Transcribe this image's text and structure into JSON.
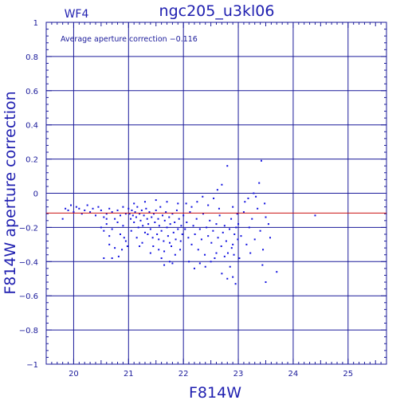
{
  "chart_data": {
    "type": "scatter",
    "title": "ngc205_u3kl06",
    "chip_label": "WF4",
    "annotation": "Average aperture correction  −0.116",
    "xlabel": "F814W",
    "ylabel": "F814W aperture correction",
    "xlim": [
      19.5,
      25.7
    ],
    "ylim": [
      -1,
      1
    ],
    "x_ticks": [
      "20",
      "21",
      "22",
      "23",
      "24",
      "25"
    ],
    "x_tick_values": [
      20,
      21,
      22,
      23,
      24,
      25
    ],
    "y_ticks": [
      "1",
      "0.8",
      "0.6",
      "0.4",
      "0.2",
      "0",
      "−0.2",
      "−0.4",
      "−0.6",
      "−0.8",
      "−1"
    ],
    "y_tick_values": [
      1,
      0.8,
      0.6,
      0.4,
      0.2,
      0,
      -0.2,
      -0.4,
      -0.6,
      -0.8,
      -1
    ],
    "average_correction": -0.116,
    "grid": true,
    "colors": {
      "frame": "#1a1a9a",
      "points": "#1010e0",
      "average_line": "#c81010",
      "text": "#1f1fb0"
    },
    "points": [
      [
        19.8,
        -0.15
      ],
      [
        19.85,
        -0.09
      ],
      [
        19.9,
        -0.1
      ],
      [
        19.95,
        -0.07
      ],
      [
        20.0,
        -0.11
      ],
      [
        20.05,
        -0.08
      ],
      [
        20.1,
        -0.09
      ],
      [
        20.15,
        -0.12
      ],
      [
        20.2,
        -0.1
      ],
      [
        20.25,
        -0.07
      ],
      [
        20.3,
        -0.11
      ],
      [
        20.35,
        -0.09
      ],
      [
        20.4,
        -0.13
      ],
      [
        20.45,
        -0.08
      ],
      [
        20.5,
        -0.1
      ],
      [
        20.55,
        -0.14
      ],
      [
        20.6,
        -0.12
      ],
      [
        20.65,
        -0.09
      ],
      [
        20.7,
        -0.11
      ],
      [
        20.75,
        -0.15
      ],
      [
        20.8,
        -0.1
      ],
      [
        20.85,
        -0.13
      ],
      [
        20.9,
        -0.08
      ],
      [
        20.95,
        -0.12
      ],
      [
        20.5,
        -0.2
      ],
      [
        20.55,
        -0.22
      ],
      [
        20.6,
        -0.18
      ],
      [
        20.65,
        -0.25
      ],
      [
        20.7,
        -0.21
      ],
      [
        20.8,
        -0.17
      ],
      [
        20.85,
        -0.24
      ],
      [
        20.9,
        -0.19
      ],
      [
        20.95,
        -0.28
      ],
      [
        20.75,
        -0.32
      ],
      [
        20.65,
        -0.3
      ],
      [
        20.55,
        -0.38
      ],
      [
        20.7,
        -0.38
      ],
      [
        20.82,
        -0.37
      ],
      [
        20.88,
        -0.33
      ],
      [
        20.6,
        -0.15
      ],
      [
        20.92,
        -0.26
      ],
      [
        20.98,
        -0.31
      ],
      [
        21.0,
        -0.09
      ],
      [
        21.02,
        -0.12
      ],
      [
        21.04,
        -0.15
      ],
      [
        21.06,
        -0.1
      ],
      [
        21.08,
        -0.13
      ],
      [
        21.1,
        -0.17
      ],
      [
        21.12,
        -0.11
      ],
      [
        21.14,
        -0.14
      ],
      [
        21.16,
        -0.08
      ],
      [
        21.18,
        -0.2
      ],
      [
        21.2,
        -0.12
      ],
      [
        21.22,
        -0.16
      ],
      [
        21.24,
        -0.1
      ],
      [
        21.26,
        -0.19
      ],
      [
        21.28,
        -0.13
      ],
      [
        21.3,
        -0.23
      ],
      [
        21.32,
        -0.09
      ],
      [
        21.34,
        -0.15
      ],
      [
        21.36,
        -0.18
      ],
      [
        21.38,
        -0.11
      ],
      [
        21.4,
        -0.21
      ],
      [
        21.42,
        -0.14
      ],
      [
        21.44,
        -0.26
      ],
      [
        21.46,
        -0.12
      ],
      [
        21.48,
        -0.17
      ],
      [
        21.5,
        -0.1
      ],
      [
        21.52,
        -0.24
      ],
      [
        21.54,
        -0.15
      ],
      [
        21.56,
        -0.19
      ],
      [
        21.58,
        -0.08
      ],
      [
        21.6,
        -0.22
      ],
      [
        21.62,
        -0.13
      ],
      [
        21.64,
        -0.28
      ],
      [
        21.66,
        -0.16
      ],
      [
        21.68,
        -0.11
      ],
      [
        21.7,
        -0.2
      ],
      [
        21.72,
        -0.25
      ],
      [
        21.74,
        -0.14
      ],
      [
        21.76,
        -0.18
      ],
      [
        21.78,
        -0.31
      ],
      [
        21.8,
        -0.12
      ],
      [
        21.82,
        -0.23
      ],
      [
        21.84,
        -0.17
      ],
      [
        21.86,
        -0.27
      ],
      [
        21.88,
        -0.1
      ],
      [
        21.9,
        -0.21
      ],
      [
        21.92,
        -0.15
      ],
      [
        21.94,
        -0.33
      ],
      [
        21.96,
        -0.19
      ],
      [
        21.98,
        -0.24
      ],
      [
        21.05,
        -0.22
      ],
      [
        21.15,
        -0.26
      ],
      [
        21.25,
        -0.29
      ],
      [
        21.35,
        -0.24
      ],
      [
        21.45,
        -0.31
      ],
      [
        21.55,
        -0.27
      ],
      [
        21.65,
        -0.34
      ],
      [
        21.75,
        -0.29
      ],
      [
        21.85,
        -0.36
      ],
      [
        21.95,
        -0.28
      ],
      [
        21.1,
        -0.06
      ],
      [
        21.3,
        -0.05
      ],
      [
        21.5,
        -0.04
      ],
      [
        21.7,
        -0.05
      ],
      [
        21.9,
        -0.06
      ],
      [
        21.2,
        -0.31
      ],
      [
        21.4,
        -0.35
      ],
      [
        21.6,
        -0.38
      ],
      [
        21.8,
        -0.41
      ],
      [
        21.65,
        -0.42
      ],
      [
        21.75,
        -0.4
      ],
      [
        21.55,
        -0.33
      ],
      [
        22.0,
        -0.13
      ],
      [
        22.03,
        -0.21
      ],
      [
        22.06,
        -0.17
      ],
      [
        22.09,
        -0.26
      ],
      [
        22.12,
        -0.11
      ],
      [
        22.15,
        -0.3
      ],
      [
        22.18,
        -0.19
      ],
      [
        22.21,
        -0.24
      ],
      [
        22.24,
        -0.15
      ],
      [
        22.27,
        -0.33
      ],
      [
        22.3,
        -0.21
      ],
      [
        22.33,
        -0.27
      ],
      [
        22.36,
        -0.12
      ],
      [
        22.39,
        -0.36
      ],
      [
        22.42,
        -0.2
      ],
      [
        22.45,
        -0.25
      ],
      [
        22.48,
        -0.16
      ],
      [
        22.51,
        -0.29
      ],
      [
        22.54,
        -0.22
      ],
      [
        22.57,
        -0.38
      ],
      [
        22.6,
        -0.18
      ],
      [
        22.63,
        -0.26
      ],
      [
        22.66,
        -0.13
      ],
      [
        22.69,
        -0.31
      ],
      [
        22.72,
        -0.23
      ],
      [
        22.75,
        -0.19
      ],
      [
        22.78,
        -0.28
      ],
      [
        22.81,
        -0.35
      ],
      [
        22.84,
        -0.21
      ],
      [
        22.87,
        -0.15
      ],
      [
        22.9,
        -0.3
      ],
      [
        22.93,
        -0.24
      ],
      [
        22.96,
        -0.2
      ],
      [
        22.99,
        -0.27
      ],
      [
        22.1,
        -0.4
      ],
      [
        22.2,
        -0.44
      ],
      [
        22.3,
        -0.41
      ],
      [
        22.4,
        -0.43
      ],
      [
        22.5,
        -0.4
      ],
      [
        22.6,
        -0.35
      ],
      [
        22.7,
        -0.47
      ],
      [
        22.8,
        -0.5
      ],
      [
        22.9,
        -0.49
      ],
      [
        22.95,
        -0.53
      ],
      [
        22.85,
        -0.43
      ],
      [
        22.75,
        -0.37
      ],
      [
        22.05,
        -0.06
      ],
      [
        22.15,
        -0.08
      ],
      [
        22.25,
        -0.05
      ],
      [
        22.35,
        -0.02
      ],
      [
        22.45,
        -0.07
      ],
      [
        22.55,
        -0.03
      ],
      [
        22.65,
        -0.09
      ],
      [
        22.7,
        0.05
      ],
      [
        22.8,
        0.16
      ],
      [
        22.62,
        0.02
      ],
      [
        22.9,
        -0.08
      ],
      [
        22.98,
        -0.12
      ],
      [
        22.92,
        -0.36
      ],
      [
        22.88,
        -0.32
      ],
      [
        23.0,
        -0.18
      ],
      [
        23.05,
        -0.25
      ],
      [
        23.1,
        -0.11
      ],
      [
        23.15,
        -0.3
      ],
      [
        23.2,
        -0.2
      ],
      [
        23.25,
        -0.15
      ],
      [
        23.3,
        -0.27
      ],
      [
        23.35,
        -0.09
      ],
      [
        23.4,
        -0.22
      ],
      [
        23.45,
        -0.33
      ],
      [
        23.5,
        -0.14
      ],
      [
        23.55,
        -0.18
      ],
      [
        23.02,
        -0.38
      ],
      [
        23.12,
        -0.05
      ],
      [
        23.22,
        -0.35
      ],
      [
        23.32,
        -0.02
      ],
      [
        23.38,
        0.06
      ],
      [
        23.42,
        0.19
      ],
      [
        23.28,
        0.0
      ],
      [
        23.18,
        -0.03
      ],
      [
        23.48,
        -0.06
      ],
      [
        23.44,
        -0.42
      ],
      [
        23.5,
        -0.52
      ],
      [
        23.7,
        -0.46
      ],
      [
        23.58,
        -0.26
      ],
      [
        24.4,
        -0.13
      ]
    ]
  }
}
